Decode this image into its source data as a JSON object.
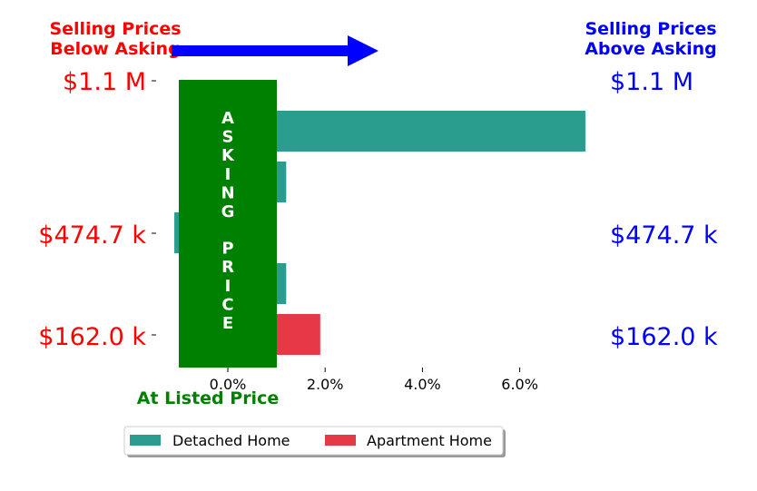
{
  "chart_data": {
    "type": "bar",
    "orientation": "horizontal",
    "header_left": [
      "Selling Prices",
      "Below Asking"
    ],
    "header_right": [
      "Selling Prices",
      "Above Asking"
    ],
    "price_labels": [
      "$1.1 M",
      "$474.7 k",
      "$162.0 k"
    ],
    "asking_label": "ASKING PRICE",
    "at_listed_label": "At Listed Price",
    "x_ticks": [
      "0.0%",
      "2.0%",
      "4.0%",
      "6.0%"
    ],
    "x_tick_values": [
      0,
      2,
      4,
      6
    ],
    "xlim": [
      -1.05,
      7.4
    ],
    "series": [
      {
        "name": "Detached Home",
        "color": "#2a9d8f",
        "bars": [
          {
            "row": 0,
            "value": 7.35
          },
          {
            "row": 1,
            "value": 1.2
          },
          {
            "row": 2,
            "value": -1.1
          },
          {
            "row": 3,
            "value": 1.2
          }
        ]
      },
      {
        "name": "Apartment Home",
        "color": "#e63946",
        "bars": [
          {
            "row": 4,
            "value": 1.9
          }
        ]
      }
    ],
    "colors": {
      "below": "#ff0000",
      "above": "#0000ff",
      "asking": "#008000"
    },
    "legend_position": "bottom-center",
    "grid": false
  }
}
